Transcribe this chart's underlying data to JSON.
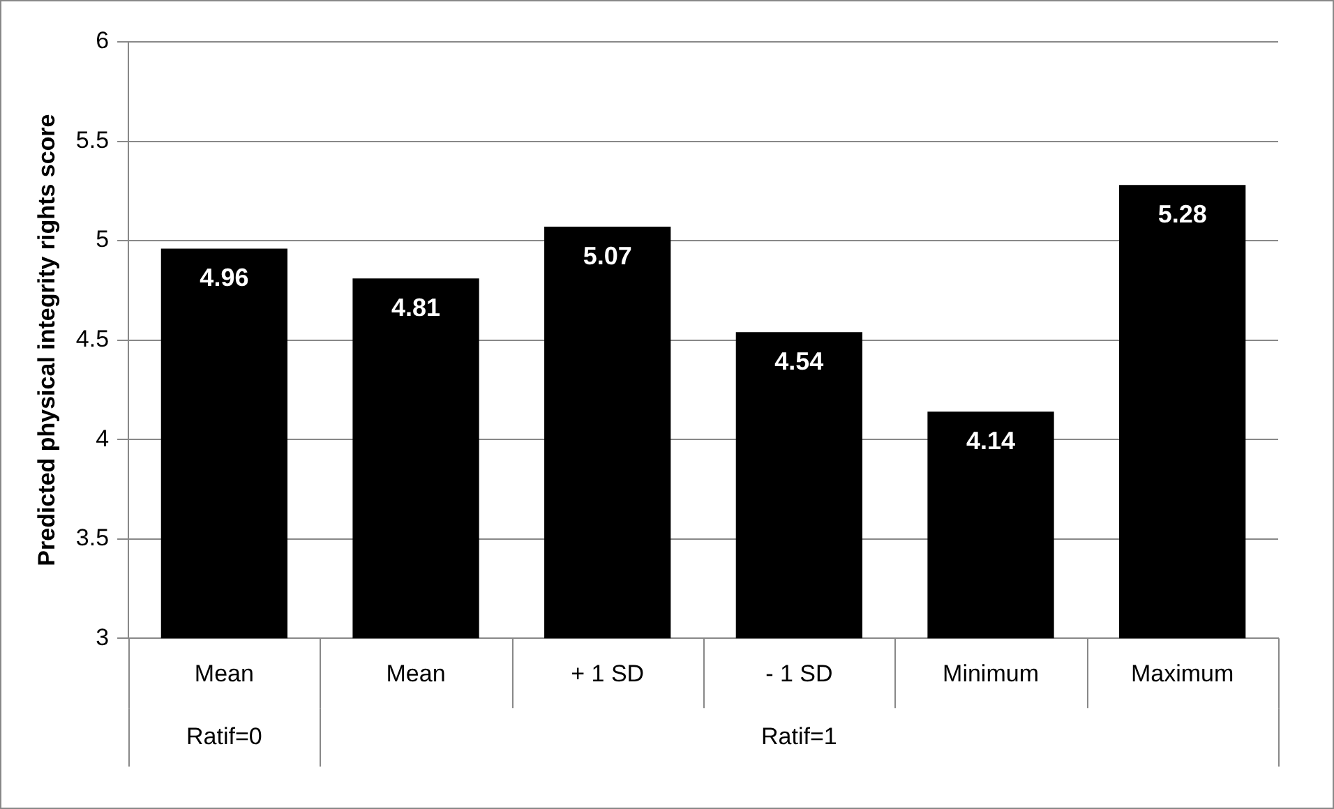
{
  "chart_data": {
    "type": "bar",
    "ylabel": "Predicted physical integrity rights score",
    "categories": [
      "Mean",
      "Mean",
      "+ 1 SD",
      "- 1 SD",
      "Minimum",
      "Maximum"
    ],
    "values": [
      4.96,
      4.81,
      5.07,
      4.54,
      4.14,
      5.28
    ],
    "color": "#000000",
    "ylim": [
      3,
      6
    ],
    "yticks": [
      3,
      3.5,
      4,
      4.5,
      5,
      5.5,
      6
    ],
    "grid": "y",
    "data_labels": true,
    "legend": false,
    "annotations": [
      "Ratif=0",
      "Ratif=1"
    ]
  }
}
